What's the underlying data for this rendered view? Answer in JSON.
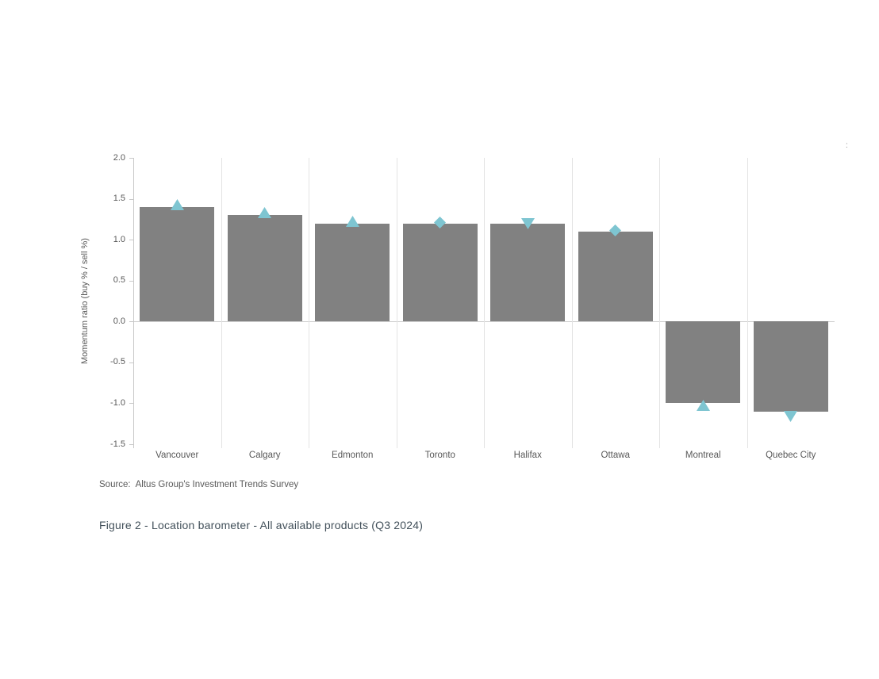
{
  "figure": {
    "source_label": "Source:",
    "source_text": "Altus Group's Investment Trends Survey",
    "caption": "Figure 2  -  Location barometer - All available products (Q3 2024)",
    "stray_mark": ":"
  },
  "chart_data": {
    "type": "bar",
    "title": "",
    "xlabel": "",
    "ylabel": "Momentum ratio  (buy % / sell %)",
    "ylim": [
      -1.5,
      2.0
    ],
    "yticks": [
      2.0,
      1.5,
      1.0,
      0.5,
      0.0,
      -0.5,
      -1.0,
      -1.5
    ],
    "grid": "vertical-category-separators-and-zero-line",
    "legend_position": "none",
    "categories": [
      "Vancouver",
      "Calgary",
      "Edmonton",
      "Toronto",
      "Halifax",
      "Ottawa",
      "Montreal",
      "Quebec City"
    ],
    "values": [
      1.4,
      1.3,
      1.2,
      1.2,
      1.2,
      1.1,
      -1.0,
      -1.1
    ],
    "trend_markers": [
      "up",
      "up",
      "up",
      "flat",
      "down",
      "flat",
      "up",
      "down"
    ],
    "marker_shape_map": {
      "up": "triangle-up",
      "down": "triangle-down",
      "flat": "diamond"
    },
    "colors": {
      "bar": "#818181",
      "marker": "#7EC5D1",
      "gridline": "#E3E3E3",
      "axis_line": "#C9C9C9",
      "zero_line": "#CFCFCF",
      "tick_text": "#595959",
      "axis_title_text": "#595959",
      "source_text": "#595959",
      "caption_text": "#42505A"
    }
  }
}
